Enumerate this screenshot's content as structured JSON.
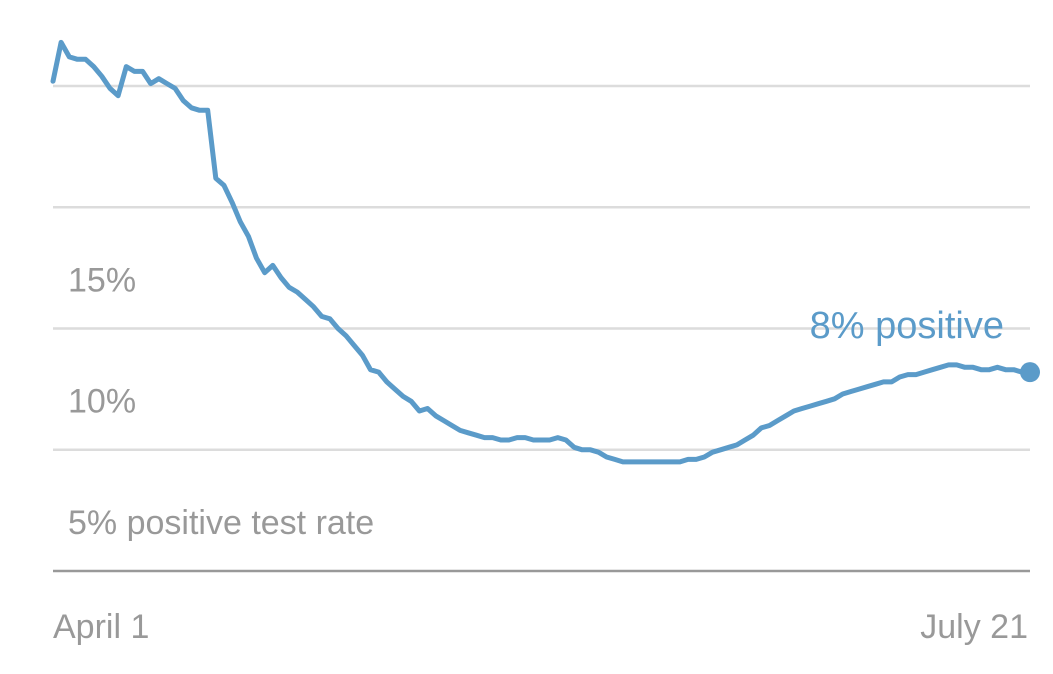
{
  "chart_data": {
    "type": "line",
    "x_start": "April 1",
    "x_end": "July 21",
    "ylim": [
      0,
      22
    ],
    "grid_values": [
      5,
      10,
      15,
      20
    ],
    "y_tick_labels": [
      {
        "value": 15,
        "label": "15%"
      },
      {
        "value": 10,
        "label": "10%"
      },
      {
        "value": 5,
        "label": "5% positive test rate"
      }
    ],
    "x_tick_labels": [
      "April 1",
      "July 21"
    ],
    "end_label": "8% positive",
    "color": "#5b9bc9",
    "series": [
      {
        "values": [
          20.2,
          21.8,
          21.2,
          21.1,
          21.1,
          20.8,
          20.4,
          19.9,
          19.6,
          20.8,
          20.6,
          20.6,
          20.1,
          20.3,
          20.1,
          19.9,
          19.4,
          19.1,
          19.0,
          19.0,
          16.2,
          15.9,
          15.2,
          14.4,
          13.8,
          12.9,
          12.3,
          12.6,
          12.1,
          11.7,
          11.5,
          11.2,
          10.9,
          10.5,
          10.4,
          10.0,
          9.7,
          9.3,
          8.9,
          8.3,
          8.2,
          7.8,
          7.5,
          7.2,
          7.0,
          6.6,
          6.7,
          6.4,
          6.2,
          6.0,
          5.8,
          5.7,
          5.6,
          5.5,
          5.5,
          5.4,
          5.4,
          5.5,
          5.5,
          5.4,
          5.4,
          5.4,
          5.5,
          5.4,
          5.1,
          5.0,
          5.0,
          4.9,
          4.7,
          4.6,
          4.5,
          4.5,
          4.5,
          4.5,
          4.5,
          4.5,
          4.5,
          4.5,
          4.6,
          4.6,
          4.7,
          4.9,
          5.0,
          5.1,
          5.2,
          5.4,
          5.6,
          5.9,
          6.0,
          6.2,
          6.4,
          6.6,
          6.7,
          6.8,
          6.9,
          7.0,
          7.1,
          7.3,
          7.4,
          7.5,
          7.6,
          7.7,
          7.8,
          7.8,
          8.0,
          8.1,
          8.1,
          8.2,
          8.3,
          8.4,
          8.5,
          8.5,
          8.4,
          8.4,
          8.3,
          8.3,
          8.4,
          8.3,
          8.3,
          8.2,
          8.2
        ]
      }
    ]
  }
}
